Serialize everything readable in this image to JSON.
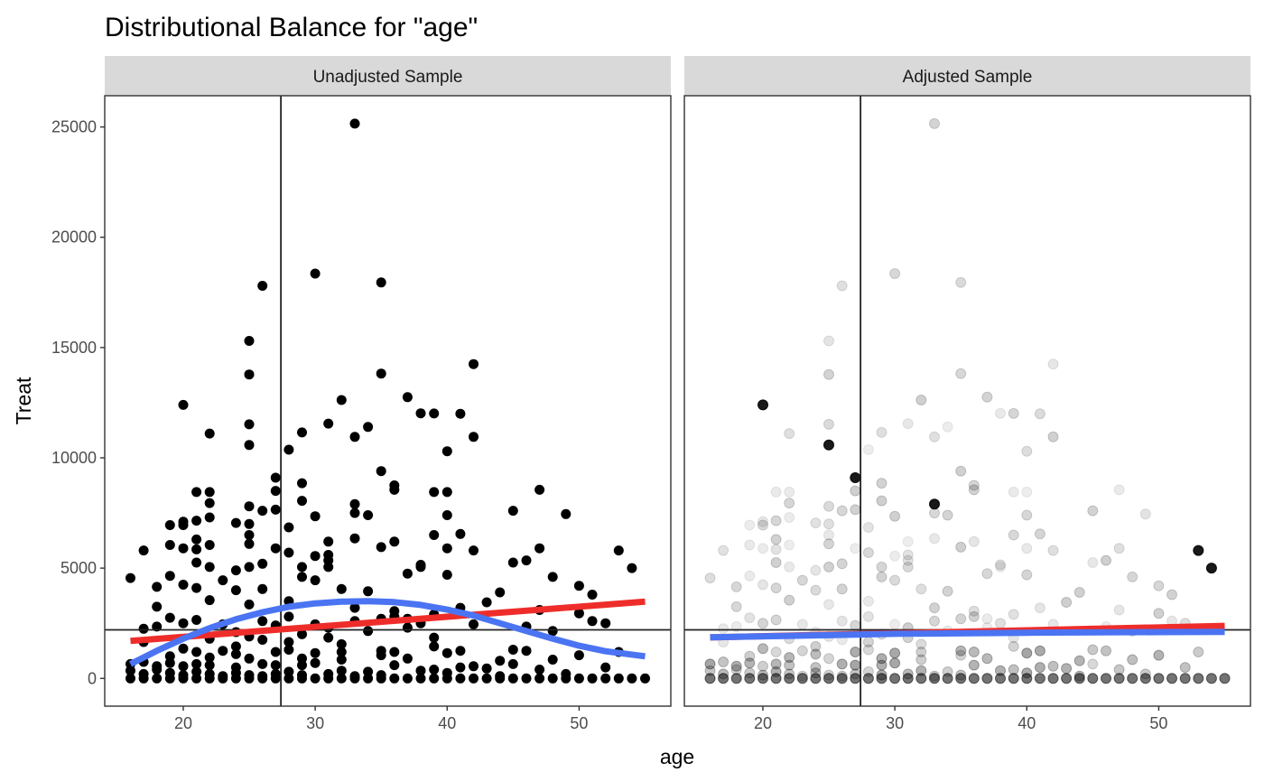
{
  "title": "Distributional Balance for \"age\"",
  "colors": {
    "point": "#000000",
    "smooth": "#4b74f3",
    "linear_fit": "#ee2d2a",
    "strip_bg": "#d9d9d9",
    "panel_border": "#333333",
    "reference_line": "#222222"
  },
  "chart_data": [
    {
      "type": "scatter",
      "panel": "Unadjusted Sample",
      "xlabel": "age",
      "ylabel": "Treat",
      "xlim": [
        14.05,
        56.95
      ],
      "ylim": [
        -1258,
        26417
      ],
      "x_ticks": [
        20,
        30,
        40,
        50
      ],
      "y_ticks": [
        0,
        5000,
        10000,
        15000,
        20000,
        25000
      ],
      "grid": false,
      "point_opacity": "full",
      "reference_lines": {
        "vertical_x": 27.4,
        "horizontal_y": 2200
      },
      "points": [
        [
          33,
          25150
        ],
        [
          30,
          18350
        ],
        [
          26,
          17800
        ],
        [
          35,
          17950
        ],
        [
          25,
          15300
        ],
        [
          42,
          14250
        ],
        [
          25,
          13780
        ],
        [
          35,
          13820
        ],
        [
          37,
          12750
        ],
        [
          32,
          12620
        ],
        [
          20,
          12400
        ],
        [
          38,
          12020
        ],
        [
          39,
          12010
        ],
        [
          41,
          12000
        ],
        [
          31,
          11550
        ],
        [
          34,
          11400
        ],
        [
          25,
          11520
        ],
        [
          22,
          11100
        ],
        [
          29,
          11150
        ],
        [
          33,
          10950
        ],
        [
          42,
          10950
        ],
        [
          25,
          10580
        ],
        [
          28,
          10370
        ],
        [
          40,
          10300
        ],
        [
          35,
          9400
        ],
        [
          27,
          9100
        ],
        [
          29,
          8850
        ],
        [
          36,
          8750
        ],
        [
          27,
          8500
        ],
        [
          21,
          8450
        ],
        [
          22,
          8450
        ],
        [
          36,
          8550
        ],
        [
          40,
          8450
        ],
        [
          39,
          8450
        ],
        [
          47,
          8550
        ],
        [
          22,
          7950
        ],
        [
          25,
          7800
        ],
        [
          33,
          7900
        ],
        [
          26,
          7600
        ],
        [
          27,
          7650
        ],
        [
          29,
          8050
        ],
        [
          33,
          7500
        ],
        [
          30,
          7350
        ],
        [
          34,
          7400
        ],
        [
          45,
          7600
        ],
        [
          49,
          7450
        ],
        [
          40,
          7400
        ],
        [
          20,
          7100
        ],
        [
          21,
          7150
        ],
        [
          22,
          7300
        ],
        [
          24,
          7050
        ],
        [
          19,
          6950
        ],
        [
          20,
          6950
        ],
        [
          25,
          7000
        ],
        [
          28,
          6850
        ],
        [
          31,
          6200
        ],
        [
          33,
          6350
        ],
        [
          36,
          6200
        ],
        [
          39,
          6500
        ],
        [
          41,
          6550
        ],
        [
          25,
          6500
        ],
        [
          25,
          6100
        ],
        [
          21,
          6300
        ],
        [
          19,
          6050
        ],
        [
          22,
          6050
        ],
        [
          17,
          5800
        ],
        [
          20,
          5900
        ],
        [
          21,
          5850
        ],
        [
          28,
          5700
        ],
        [
          30,
          5550
        ],
        [
          31,
          5600
        ],
        [
          27,
          5900
        ],
        [
          29,
          5050
        ],
        [
          35,
          5950
        ],
        [
          40,
          5900
        ],
        [
          42,
          5800
        ],
        [
          47,
          5900
        ],
        [
          53,
          5800
        ],
        [
          26,
          5200
        ],
        [
          25,
          5050
        ],
        [
          24,
          4900
        ],
        [
          21,
          5250
        ],
        [
          22,
          5050
        ],
        [
          19,
          4650
        ],
        [
          23,
          4450
        ],
        [
          31,
          5350
        ],
        [
          31,
          5050
        ],
        [
          37,
          4750
        ],
        [
          38,
          5050
        ],
        [
          38,
          5150
        ],
        [
          40,
          4700
        ],
        [
          45,
          5250
        ],
        [
          46,
          5350
        ],
        [
          48,
          4600
        ],
        [
          16,
          4550
        ],
        [
          20,
          4250
        ],
        [
          21,
          4100
        ],
        [
          24,
          4000
        ],
        [
          26,
          4050
        ],
        [
          29,
          4600
        ],
        [
          30,
          4450
        ],
        [
          32,
          4050
        ],
        [
          34,
          3950
        ],
        [
          44,
          3900
        ],
        [
          50,
          4200
        ],
        [
          51,
          3800
        ],
        [
          54,
          5000
        ],
        [
          18,
          4150
        ],
        [
          18,
          3250
        ],
        [
          22,
          3550
        ],
        [
          25,
          3350
        ],
        [
          28,
          3500
        ],
        [
          33,
          3200
        ],
        [
          36,
          3050
        ],
        [
          39,
          2900
        ],
        [
          41,
          3200
        ],
        [
          43,
          3450
        ],
        [
          47,
          3100
        ],
        [
          50,
          2950
        ],
        [
          51,
          2600
        ],
        [
          52,
          2500
        ],
        [
          17,
          2250
        ],
        [
          18,
          2350
        ],
        [
          19,
          2750
        ],
        [
          20,
          2500
        ],
        [
          21,
          2650
        ],
        [
          23,
          2450
        ],
        [
          24,
          2100
        ],
        [
          26,
          2600
        ],
        [
          27,
          2400
        ],
        [
          28,
          2800
        ],
        [
          30,
          2450
        ],
        [
          31,
          2300
        ],
        [
          33,
          2600
        ],
        [
          35,
          2700
        ],
        [
          36,
          2800
        ],
        [
          37,
          2700
        ],
        [
          38,
          2500
        ],
        [
          42,
          2450
        ],
        [
          46,
          2350
        ],
        [
          48,
          2150
        ],
        [
          29,
          2000
        ],
        [
          31,
          1850
        ],
        [
          34,
          2150
        ],
        [
          37,
          2300
        ],
        [
          39,
          1850
        ],
        [
          22,
          1800
        ],
        [
          25,
          1900
        ],
        [
          26,
          1750
        ],
        [
          28,
          1650
        ],
        [
          32,
          1550
        ],
        [
          17,
          1650
        ],
        [
          24,
          1450
        ],
        [
          20,
          1350
        ],
        [
          21,
          1200
        ],
        [
          23,
          1250
        ],
        [
          24,
          1100
        ],
        [
          27,
          1200
        ],
        [
          28,
          1300
        ],
        [
          30,
          1150
        ],
        [
          32,
          1200
        ],
        [
          35,
          1250
        ],
        [
          36,
          1200
        ],
        [
          39,
          1450
        ],
        [
          40,
          1150
        ],
        [
          41,
          1250
        ],
        [
          45,
          1300
        ],
        [
          46,
          1250
        ],
        [
          50,
          1050
        ],
        [
          53,
          1200
        ],
        [
          19,
          1000
        ],
        [
          22,
          950
        ],
        [
          25,
          900
        ],
        [
          29,
          900
        ],
        [
          32,
          850
        ],
        [
          35,
          1050
        ],
        [
          37,
          900
        ],
        [
          44,
          800
        ],
        [
          48,
          850
        ],
        [
          29,
          600
        ],
        [
          26,
          650
        ],
        [
          16,
          650
        ],
        [
          17,
          750
        ],
        [
          18,
          550
        ],
        [
          19,
          700
        ],
        [
          20,
          550
        ],
        [
          21,
          650
        ],
        [
          22,
          600
        ],
        [
          24,
          500
        ],
        [
          27,
          600
        ],
        [
          30,
          700
        ],
        [
          36,
          600
        ],
        [
          42,
          550
        ],
        [
          45,
          650
        ],
        [
          52,
          500
        ],
        [
          39,
          400
        ],
        [
          41,
          500
        ],
        [
          43,
          450
        ],
        [
          47,
          400
        ],
        [
          28,
          300
        ],
        [
          32,
          350
        ],
        [
          34,
          300
        ],
        [
          38,
          350
        ],
        [
          16,
          350
        ],
        [
          17,
          200
        ],
        [
          18,
          400
        ],
        [
          19,
          250
        ],
        [
          20,
          150
        ],
        [
          21,
          300
        ],
        [
          22,
          200
        ],
        [
          23,
          100
        ],
        [
          24,
          250
        ],
        [
          25,
          150
        ],
        [
          26,
          100
        ],
        [
          27,
          200
        ],
        [
          29,
          150
        ],
        [
          31,
          200
        ],
        [
          33,
          100
        ],
        [
          35,
          150
        ],
        [
          40,
          250
        ],
        [
          44,
          100
        ],
        [
          49,
          200
        ],
        [
          16,
          0
        ],
        [
          17,
          0
        ],
        [
          18,
          0
        ],
        [
          19,
          0
        ],
        [
          20,
          0
        ],
        [
          21,
          0
        ],
        [
          22,
          0
        ],
        [
          23,
          0
        ],
        [
          24,
          0
        ],
        [
          25,
          0
        ],
        [
          26,
          0
        ],
        [
          27,
          0
        ],
        [
          28,
          0
        ],
        [
          29,
          0
        ],
        [
          30,
          0
        ],
        [
          31,
          0
        ],
        [
          32,
          0
        ],
        [
          33,
          0
        ],
        [
          34,
          0
        ],
        [
          35,
          0
        ],
        [
          36,
          0
        ],
        [
          37,
          0
        ],
        [
          38,
          0
        ],
        [
          39,
          0
        ],
        [
          40,
          0
        ],
        [
          41,
          0
        ],
        [
          42,
          0
        ],
        [
          43,
          0
        ],
        [
          44,
          0
        ],
        [
          45,
          0
        ],
        [
          46,
          0
        ],
        [
          47,
          0
        ],
        [
          48,
          0
        ],
        [
          49,
          0
        ],
        [
          50,
          0
        ],
        [
          51,
          0
        ],
        [
          52,
          0
        ],
        [
          53,
          0
        ],
        [
          54,
          0
        ],
        [
          55,
          0
        ]
      ],
      "smooth_curve": [
        [
          16,
          650
        ],
        [
          18,
          1250
        ],
        [
          20,
          1800
        ],
        [
          22,
          2280
        ],
        [
          24,
          2680
        ],
        [
          26,
          3000
        ],
        [
          28,
          3250
        ],
        [
          30,
          3400
        ],
        [
          32,
          3480
        ],
        [
          34,
          3500
        ],
        [
          36,
          3460
        ],
        [
          38,
          3330
        ],
        [
          40,
          3120
        ],
        [
          42,
          2850
        ],
        [
          44,
          2500
        ],
        [
          46,
          2150
        ],
        [
          48,
          1800
        ],
        [
          50,
          1480
        ],
        [
          52,
          1230
        ],
        [
          55,
          1000
        ]
      ],
      "linear_fit": [
        [
          16,
          1700
        ],
        [
          55,
          3480
        ]
      ]
    },
    {
      "type": "scatter",
      "panel": "Adjusted Sample",
      "xlabel": "age",
      "ylabel": "Treat",
      "xlim": [
        14.05,
        56.95
      ],
      "ylim": [
        -1258,
        26417
      ],
      "x_ticks": [
        20,
        30,
        40,
        50
      ],
      "y_ticks": [
        0,
        5000,
        10000,
        15000,
        20000,
        25000
      ],
      "grid": false,
      "point_opacity": "weighted",
      "reference_lines": {
        "vertical_x": 27.4,
        "horizontal_y": 2200
      },
      "highlighted_points": [
        [
          20,
          12400
        ],
        [
          53,
          5800
        ],
        [
          54,
          5000
        ],
        [
          33,
          7900
        ],
        [
          25,
          10580
        ],
        [
          27,
          9100
        ]
      ],
      "smooth_curve": [
        [
          16,
          1860
        ],
        [
          25,
          1960
        ],
        [
          30,
          2020
        ],
        [
          40,
          2070
        ],
        [
          50,
          2100
        ],
        [
          55,
          2110
        ]
      ],
      "linear_fit": [
        [
          16,
          1860
        ],
        [
          55,
          2380
        ]
      ]
    }
  ]
}
